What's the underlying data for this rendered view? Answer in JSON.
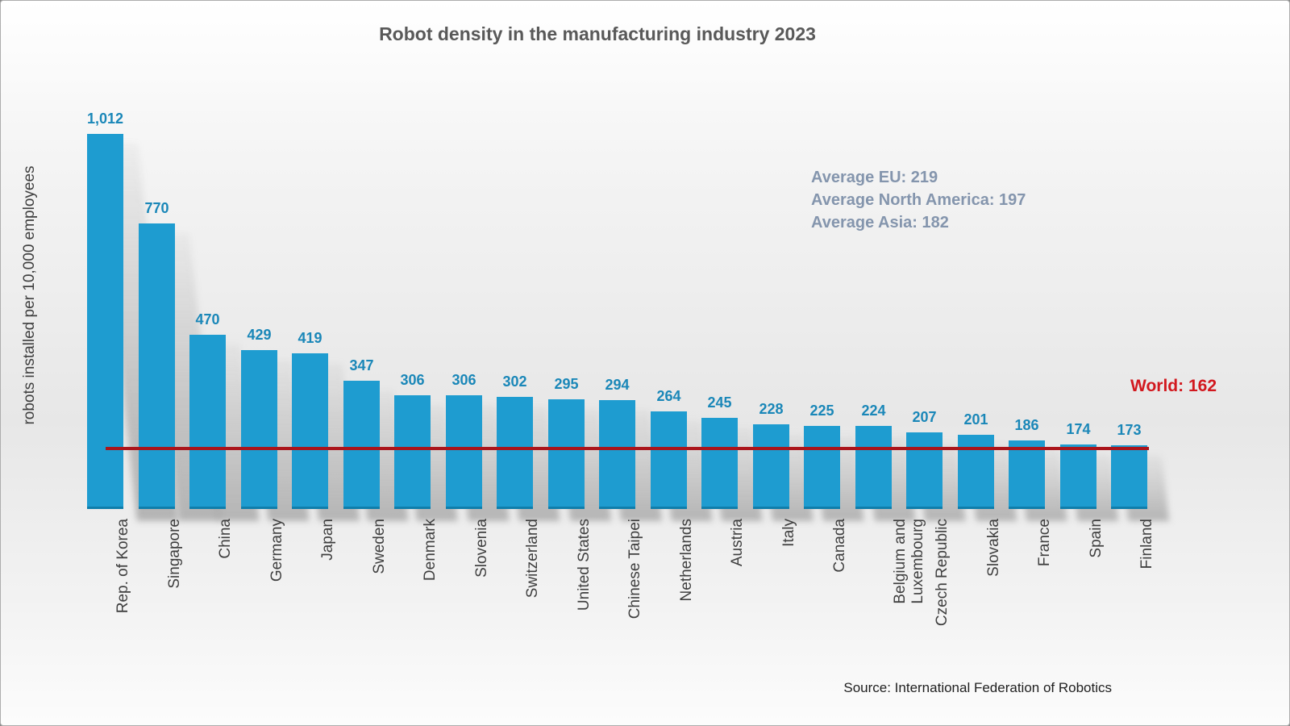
{
  "chart_data": {
    "type": "bar",
    "title": "Robot density in the manufacturing industry 2023",
    "ylabel": "robots installed per 10,000 employees",
    "xlabel": "",
    "categories": [
      "Rep. of Korea",
      "Singapore",
      "China",
      "Germany",
      "Japan",
      "Sweden",
      "Denmark",
      "Slovenia",
      "Switzerland",
      "United States",
      "Chinese Taipei",
      "Netherlands",
      "Austria",
      "Italy",
      "Canada",
      "Belgium and\nLuxembourg",
      "Czech Republic",
      "Slovakia",
      "France",
      "Spain",
      "Finland"
    ],
    "values": [
      1012,
      770,
      470,
      429,
      419,
      347,
      306,
      306,
      302,
      295,
      294,
      264,
      245,
      228,
      225,
      224,
      207,
      201,
      186,
      174,
      173
    ],
    "value_labels": [
      "1,012",
      "770",
      "470",
      "429",
      "419",
      "347",
      "306",
      "306",
      "302",
      "295",
      "294",
      "264",
      "245",
      "228",
      "225",
      "224",
      "207",
      "201",
      "186",
      "174",
      "173"
    ],
    "ylim": [
      0,
      1080
    ],
    "grid": false,
    "legend": "none",
    "bar_color": "#1e9cd0",
    "value_label_color": "#1a87b8",
    "annotations": [
      "Average EU: 219",
      "Average North America: 197",
      "Average Asia: 182"
    ],
    "annotation_color": "#8495ad",
    "world_line": {
      "label": "World: 162",
      "value": 162,
      "line_color": "#ab151b",
      "label_color": "#d2181e"
    },
    "source": "Source: International Federation of Robotics"
  }
}
